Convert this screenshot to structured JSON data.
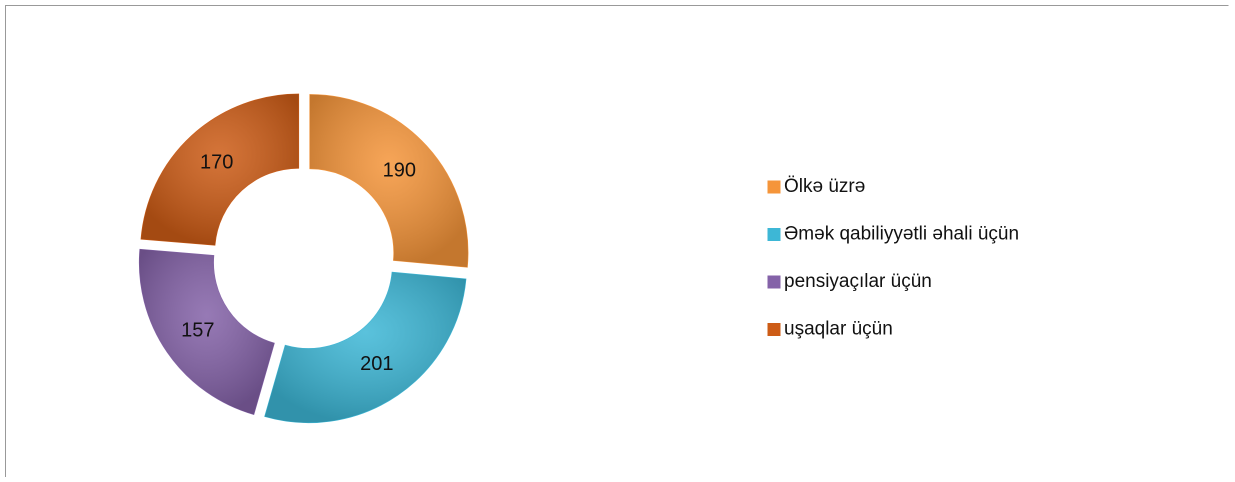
{
  "chart_data": {
    "type": "donut",
    "categories": [
      "Ölkə üzrə",
      "Əmək qabiliyyətli əhali üçün",
      "pensiyaçılar üçün",
      "uşaqlar üçün"
    ],
    "values": [
      190,
      201,
      157,
      170
    ],
    "colors": [
      "#f5953a",
      "#3db7d6",
      "#8462a8",
      "#cd5c16"
    ],
    "legend": "right"
  }
}
